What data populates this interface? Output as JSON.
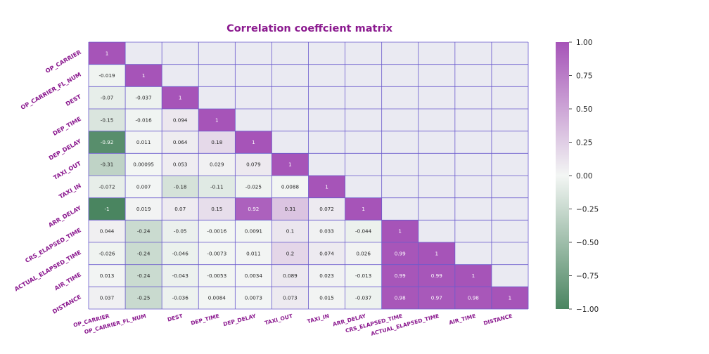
{
  "chart_data": {
    "type": "heatmap",
    "title": "Correlation coeffcient matrix",
    "title_color": "#8b1a8f",
    "label_color": "#8b1a8f",
    "mask_color": "#eaeaf2",
    "grid_color": "#6a5acd",
    "row_labels": [
      "OP_CARRIER",
      "OP_CARRIER_FL_NUM",
      "DEST",
      "DEP_TIME",
      "DEP_DELAY",
      "TAXI_OUT",
      "TAXI_IN",
      "ARR_DELAY",
      "CRS_ELAPSED_TIME",
      "ACTUAL_ELAPSED_TIME",
      "AIR_TIME",
      "DISTANCE"
    ],
    "col_labels": [
      "OP_CARRIER",
      "OP_CARRIER_FL_NUM",
      "DEST",
      "DEP_TIME",
      "DEP_DELAY",
      "TAXI_OUT",
      "TAXI_IN",
      "ARR_DELAY",
      "CRS_ELAPSED_TIME",
      "ACTUAL_ELAPSED_TIME",
      "AIR_TIME",
      "DISTANCE"
    ],
    "values": [
      [
        1
      ],
      [
        -0.019,
        1
      ],
      [
        -0.07,
        -0.037,
        1
      ],
      [
        -0.15,
        -0.016,
        0.094,
        1
      ],
      [
        -0.92,
        0.011,
        0.064,
        0.18,
        1
      ],
      [
        -0.31,
        0.00095,
        0.053,
        0.029,
        0.079,
        1
      ],
      [
        -0.072,
        0.007,
        -0.18,
        -0.11,
        -0.025,
        0.0088,
        1
      ],
      [
        -1,
        0.019,
        0.07,
        0.15,
        0.92,
        0.31,
        0.072,
        1
      ],
      [
        0.044,
        -0.24,
        -0.05,
        -0.0016,
        0.0091,
        0.1,
        0.033,
        -0.044,
        1
      ],
      [
        -0.026,
        -0.24,
        -0.046,
        -0.0073,
        0.011,
        0.2,
        0.074,
        0.026,
        0.99,
        1
      ],
      [
        0.013,
        -0.24,
        -0.043,
        -0.0053,
        0.0034,
        0.089,
        0.023,
        -0.013,
        0.99,
        0.99,
        1
      ],
      [
        0.037,
        -0.25,
        -0.036,
        0.0084,
        0.0073,
        0.073,
        0.015,
        -0.037,
        0.98,
        0.97,
        0.98,
        1
      ]
    ],
    "value_labels": [
      [
        "1"
      ],
      [
        "-0.019",
        "1"
      ],
      [
        "-0.07",
        "-0.037",
        "1"
      ],
      [
        "-0.15",
        "-0.016",
        "0.094",
        "1"
      ],
      [
        "-0.92",
        "0.011",
        "0.064",
        "0.18",
        "1"
      ],
      [
        "-0.31",
        "0.00095",
        "0.053",
        "0.029",
        "0.079",
        "1"
      ],
      [
        "-0.072",
        "0.007",
        "-0.18",
        "-0.11",
        "-0.025",
        "0.0088",
        "1"
      ],
      [
        "-1",
        "0.019",
        "0.07",
        "0.15",
        "0.92",
        "0.31",
        "0.072",
        "1"
      ],
      [
        "0.044",
        "-0.24",
        "-0.05",
        "-0.0016",
        "0.0091",
        "0.1",
        "0.033",
        "-0.044",
        "1"
      ],
      [
        "-0.026",
        "-0.24",
        "-0.046",
        "-0.0073",
        "0.011",
        "0.2",
        "0.074",
        "0.026",
        "0.99",
        "1"
      ],
      [
        "0.013",
        "-0.24",
        "-0.043",
        "-0.0053",
        "0.0034",
        "0.089",
        "0.023",
        "-0.013",
        "0.99",
        "0.99",
        "1"
      ],
      [
        "0.037",
        "-0.25",
        "-0.036",
        "0.0084",
        "0.0073",
        "0.073",
        "0.015",
        "-0.037",
        "0.98",
        "0.97",
        "0.98",
        "1"
      ]
    ],
    "colorbar": {
      "range": [
        -1,
        1
      ],
      "ticks": [
        1,
        0.75,
        0.5,
        0.25,
        0,
        -0.25,
        -0.5,
        -0.75,
        -1
      ],
      "tick_labels": [
        "1.00",
        "0.75",
        "0.50",
        "0.25",
        "0.00",
        "−0.25",
        "−0.50",
        "−0.75",
        "−1.00"
      ],
      "colors": {
        "low": "#4a8560",
        "mid": "#f3f6f4",
        "high": "#a654b8"
      }
    }
  }
}
